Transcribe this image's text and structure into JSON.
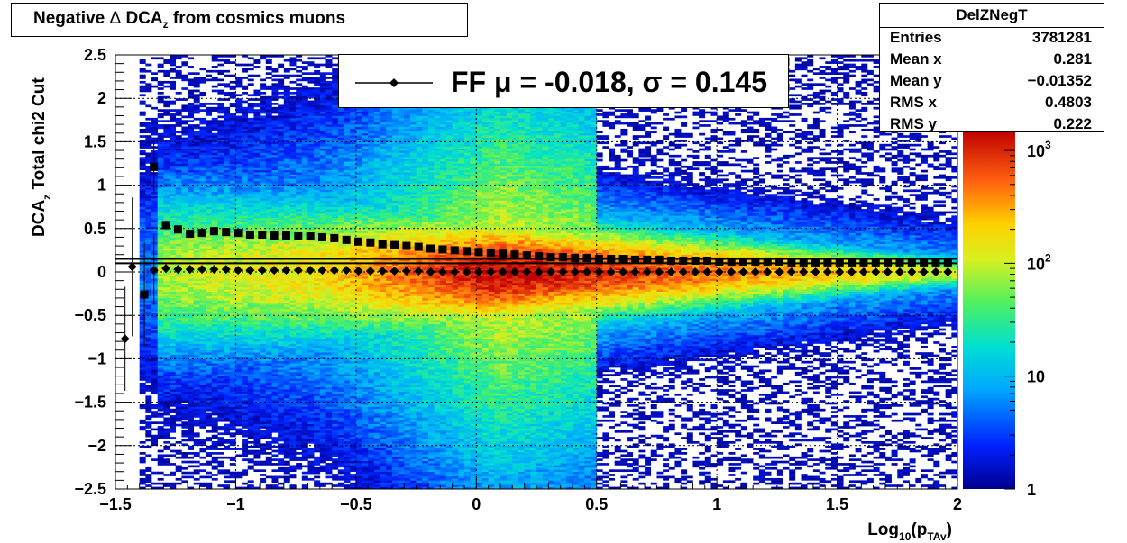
{
  "title": {
    "prefix": "Negative ",
    "delta_symbol": "Δ",
    "quantity": " DCA",
    "subscript": "z",
    "suffix": " from cosmics muons"
  },
  "stats": {
    "name": "DelZNegT",
    "rows": [
      {
        "key": "Entries",
        "value": "3781281"
      },
      {
        "key": "Mean x",
        "value": "0.281"
      },
      {
        "key": "Mean y",
        "value": "−0.01352"
      },
      {
        "key": "RMS x",
        "value": "0.4803"
      },
      {
        "key": "RMS y",
        "value": "0.222"
      }
    ]
  },
  "legend": {
    "entry": "FF μ = -0.018, σ =   0.145"
  },
  "axes": {
    "x_label_main": "Log",
    "x_label_sub1": "10",
    "x_label_mid": "(p",
    "x_label_sub2": "TAv",
    "x_label_end": ")",
    "y_label_main": "DCA",
    "y_label_sub": "z",
    "y_label_rest": "  Total chi2 Cut"
  },
  "chart_data": {
    "type": "heatmap",
    "xlim": [
      -1.5,
      2.0
    ],
    "ylim": [
      -2.5,
      2.5
    ],
    "x_ticks": [
      {
        "v": -1.5,
        "label": "−1.5"
      },
      {
        "v": -1.0,
        "label": "−1"
      },
      {
        "v": -0.5,
        "label": "−0.5"
      },
      {
        "v": 0.0,
        "label": "0"
      },
      {
        "v": 0.5,
        "label": "0.5"
      },
      {
        "v": 1.0,
        "label": "1"
      },
      {
        "v": 1.5,
        "label": "1.5"
      },
      {
        "v": 2.0,
        "label": "2"
      }
    ],
    "y_ticks": [
      {
        "v": 2.5,
        "label": "2.5"
      },
      {
        "v": 2.0,
        "label": "2"
      },
      {
        "v": 1.5,
        "label": "1.5"
      },
      {
        "v": 1.0,
        "label": "1"
      },
      {
        "v": 0.5,
        "label": "0.5"
      },
      {
        "v": 0.0,
        "label": "0"
      },
      {
        "v": -0.5,
        "label": "−0.5"
      },
      {
        "v": -1.0,
        "label": "−1"
      },
      {
        "v": -1.5,
        "label": "−1.5"
      },
      {
        "v": -2.0,
        "label": "−2"
      },
      {
        "v": -2.5,
        "label": "−2.5"
      }
    ],
    "grid": true,
    "z_scale": "log",
    "z_range": [
      1,
      1500
    ],
    "z_ticks": [
      {
        "v": 1,
        "label": "1",
        "exp": ""
      },
      {
        "v": 10,
        "label": "10",
        "exp": ""
      },
      {
        "v": 100,
        "label": "10",
        "exp": "2"
      },
      {
        "v": 1000,
        "label": "10",
        "exp": "3"
      }
    ],
    "horizontal_reference_lines": [
      0.1,
      0.15
    ],
    "series": [
      {
        "marker": "diamond",
        "x": [
          -1.46,
          -1.43,
          -1.38,
          -1.34,
          -1.29,
          -1.24,
          -1.19,
          -1.14,
          -1.09,
          -1.04,
          -0.99,
          -0.94,
          -0.89,
          -0.84,
          -0.79,
          -0.74,
          -0.69,
          -0.64,
          -0.59,
          -0.54,
          -0.49,
          -0.44,
          -0.39,
          -0.34,
          -0.29,
          -0.24,
          -0.19,
          -0.14,
          -0.09,
          -0.04,
          0.01,
          0.06,
          0.11,
          0.16,
          0.21,
          0.26,
          0.31,
          0.36,
          0.41,
          0.46,
          0.51,
          0.56,
          0.61,
          0.66,
          0.71,
          0.76,
          0.81,
          0.86,
          0.91,
          0.96,
          1.01,
          1.06,
          1.11,
          1.16,
          1.21,
          1.26,
          1.31,
          1.36,
          1.41,
          1.46,
          1.51,
          1.56,
          1.61,
          1.66,
          1.71,
          1.76,
          1.81,
          1.86,
          1.91,
          1.96
        ],
        "y": [
          -0.77,
          0.06,
          -0.26,
          0.02,
          0.04,
          0.03,
          0.03,
          0.03,
          0.03,
          0.03,
          0.02,
          0.02,
          0.02,
          0.02,
          0.02,
          0.02,
          0.02,
          0.02,
          0.02,
          0.02,
          0.01,
          0.01,
          0.01,
          0.01,
          0.01,
          0.01,
          0.0,
          0.0,
          0.0,
          0.0,
          0.0,
          0.0,
          0.0,
          0.0,
          0.0,
          0.0,
          0.0,
          0.0,
          0.0,
          0.0,
          0.0,
          0.0,
          0.0,
          0.0,
          0.0,
          0.0,
          0.0,
          0.0,
          0.0,
          0.0,
          0.0,
          0.0,
          0.0,
          0.0,
          0.0,
          0.0,
          0.0,
          0.0,
          0.0,
          0.0,
          0.0,
          0.0,
          0.0,
          0.0,
          0.0,
          0.0,
          0.0,
          0.0,
          0.0,
          0.0
        ],
        "err": [
          0.6,
          0.8,
          0.6,
          0.4,
          0.05,
          0.04,
          0.03,
          0.03,
          0.02,
          0.02,
          0.02,
          0.02,
          0.02,
          0.02,
          0.01,
          0.01,
          0.01,
          0.01,
          0.01,
          0.01,
          0.01,
          0.01,
          0.01,
          0.01,
          0.01,
          0.01,
          0.01,
          0.01,
          0.01,
          0.01,
          0.01,
          0.01,
          0.01,
          0.01,
          0.01,
          0.01,
          0.01,
          0.01,
          0.01,
          0.01,
          0.01,
          0.01,
          0.01,
          0.01,
          0.01,
          0.01,
          0.01,
          0.01,
          0.01,
          0.01,
          0.01,
          0.01,
          0.01,
          0.01,
          0.01,
          0.01,
          0.01,
          0.01,
          0.01,
          0.01,
          0.01,
          0.01,
          0.01,
          0.01,
          0.01,
          0.01,
          0.01,
          0.01,
          0.01,
          0.01
        ]
      },
      {
        "marker": "square",
        "x": [
          -1.38,
          -1.34,
          -1.29,
          -1.24,
          -1.19,
          -1.14,
          -1.09,
          -1.04,
          -0.99,
          -0.94,
          -0.89,
          -0.84,
          -0.79,
          -0.74,
          -0.69,
          -0.64,
          -0.59,
          -0.54,
          -0.49,
          -0.44,
          -0.39,
          -0.34,
          -0.29,
          -0.24,
          -0.19,
          -0.14,
          -0.09,
          -0.04,
          0.01,
          0.06,
          0.11,
          0.16,
          0.21,
          0.26,
          0.31,
          0.36,
          0.41,
          0.46,
          0.51,
          0.56,
          0.61,
          0.66,
          0.71,
          0.76,
          0.81,
          0.86,
          0.91,
          0.96,
          1.01,
          1.06,
          1.11,
          1.16,
          1.21,
          1.26,
          1.31,
          1.36,
          1.41,
          1.46,
          1.51,
          1.56,
          1.61,
          1.66,
          1.71,
          1.76,
          1.81,
          1.86,
          1.91,
          1.96
        ],
        "y": [
          -0.26,
          1.21,
          0.54,
          0.49,
          0.44,
          0.45,
          0.47,
          0.46,
          0.45,
          0.43,
          0.43,
          0.42,
          0.42,
          0.41,
          0.41,
          0.4,
          0.39,
          0.37,
          0.35,
          0.34,
          0.32,
          0.31,
          0.3,
          0.29,
          0.27,
          0.26,
          0.25,
          0.24,
          0.23,
          0.22,
          0.21,
          0.2,
          0.19,
          0.18,
          0.17,
          0.17,
          0.16,
          0.16,
          0.15,
          0.15,
          0.15,
          0.14,
          0.14,
          0.14,
          0.13,
          0.13,
          0.13,
          0.13,
          0.12,
          0.12,
          0.12,
          0.12,
          0.12,
          0.12,
          0.11,
          0.11,
          0.11,
          0.11,
          0.11,
          0.11,
          0.11,
          0.11,
          0.11,
          0.11,
          0.11,
          0.11,
          0.11,
          0.11
        ],
        "err": [
          0.5,
          0.3,
          0.05,
          0.04,
          0.03,
          0.03,
          0.02,
          0.02,
          0.02,
          0.02,
          0.02,
          0.02,
          0.02,
          0.01,
          0.01,
          0.01,
          0.01,
          0.01,
          0.01,
          0.01,
          0.01,
          0.01,
          0.01,
          0.01,
          0.01,
          0.01,
          0.01,
          0.01,
          0.01,
          0.01,
          0.01,
          0.01,
          0.01,
          0.01,
          0.01,
          0.01,
          0.01,
          0.01,
          0.01,
          0.01,
          0.01,
          0.01,
          0.01,
          0.01,
          0.01,
          0.01,
          0.01,
          0.01,
          0.01,
          0.01,
          0.01,
          0.01,
          0.01,
          0.01,
          0.01,
          0.01,
          0.01,
          0.01,
          0.01,
          0.01,
          0.01,
          0.01,
          0.01,
          0.01,
          0.01,
          0.01,
          0.01,
          0.01
        ]
      }
    ]
  }
}
